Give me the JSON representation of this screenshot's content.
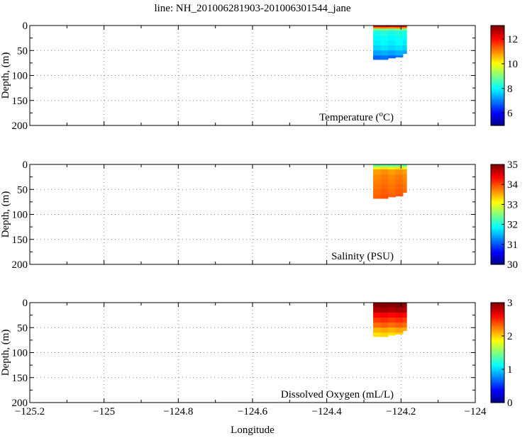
{
  "chart_data": {
    "type": "heatmap",
    "title": "line: NH_201006281903-201006301544_jane",
    "xlabel": "Longitude",
    "xlim": [
      -125.2,
      -124
    ],
    "xticks": [
      -125.2,
      -125,
      -124.8,
      -124.6,
      -124.4,
      -124.2,
      -124
    ],
    "xtick_labels": [
      "−125.2",
      "−125",
      "−124.8",
      "−124.6",
      "−124.4",
      "−124.2",
      "−124"
    ],
    "grid": true,
    "colormap": "jet",
    "columns_lon": [
      -124.275,
      -124.255,
      -124.235,
      -124.215,
      -124.195,
      -124.185
    ],
    "column_max_depth": [
      68,
      68,
      65,
      63,
      56,
      50
    ],
    "depth_levels": [
      0,
      3,
      6,
      10,
      20,
      30,
      40,
      50,
      60,
      68
    ],
    "panels": [
      {
        "name": "temperature",
        "label": "Temperature (",
        "label_sup": "o",
        "label_end": "C)",
        "ylabel": "Depth, (m)",
        "ylim": [
          200,
          0
        ],
        "yticks": [
          0,
          50,
          100,
          150,
          200
        ],
        "clim": [
          5,
          13.1
        ],
        "cticks": [
          6,
          8,
          10,
          12
        ],
        "profile_values": [
          12.5,
          11,
          9,
          8.2,
          8.0,
          7.9,
          7.7,
          7.3,
          6.8,
          6.3
        ]
      },
      {
        "name": "salinity",
        "label": "Salinity (PSU)",
        "ylabel": "Depth, (m)",
        "ylim": [
          200,
          0
        ],
        "yticks": [
          0,
          50,
          100,
          150,
          200
        ],
        "clim": [
          30,
          35
        ],
        "cticks": [
          30,
          31,
          32,
          33,
          34,
          35
        ],
        "profile_values": [
          32.3,
          32.6,
          33.2,
          33.6,
          33.7,
          33.75,
          33.8,
          33.85,
          33.9,
          33.9
        ]
      },
      {
        "name": "dissolved-oxygen",
        "label": "Dissolved Oxygen (mL/L)",
        "ylabel": "Depth, (m)",
        "ylim": [
          200,
          0
        ],
        "yticks": [
          0,
          50,
          100,
          150,
          200
        ],
        "clim": [
          0,
          3
        ],
        "cticks": [
          0,
          1,
          2,
          3
        ],
        "profile_values": [
          3.0,
          3.0,
          2.95,
          2.85,
          2.6,
          2.45,
          2.3,
          2.1,
          1.95,
          1.9
        ]
      }
    ]
  }
}
